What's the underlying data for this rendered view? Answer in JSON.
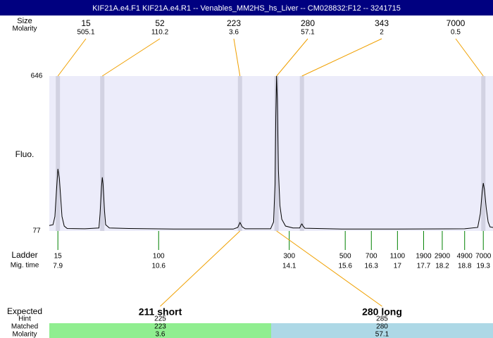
{
  "title": "KIF21A.e4.F1  KIF21A.e4.R1 -- Venables_MM2HS_hs_Liver -- CM028832:F12 -- 3241715",
  "chart_data": {
    "type": "electropherogram",
    "y_label": "Fluo.",
    "ylim": [
      77,
      646
    ],
    "yticks": [
      77,
      646
    ],
    "xlim": [
      7.67,
      19.56
    ],
    "peaks": {
      "size_label": "Size",
      "molarity_label": "Molarity",
      "sizes": [
        15,
        52,
        223,
        280,
        343,
        7000
      ],
      "molarity": [
        505.1,
        110.2,
        3.6,
        57.1,
        2,
        0.5
      ],
      "times": [
        7.9,
        9.09,
        12.78,
        13.76,
        14.44,
        19.3
      ]
    },
    "ladder": {
      "label": "Ladder",
      "time_label": "Mig. time",
      "sizes": [
        15,
        100,
        300,
        500,
        700,
        1100,
        1900,
        2900,
        4900,
        7000
      ],
      "times": [
        7.9,
        10.6,
        14.1,
        15.6,
        16.3,
        17,
        17.7,
        18.2,
        18.8,
        19.3
      ]
    },
    "trace": {
      "color": "#000000",
      "x": [
        7.67,
        7.77,
        7.82,
        7.86,
        7.9,
        7.94,
        7.98,
        8.01,
        8.07,
        8.15,
        8.62,
        9.0,
        9.03,
        9.07,
        9.09,
        9.11,
        9.15,
        9.18,
        9.28,
        9.8,
        11.0,
        12.6,
        12.72,
        12.78,
        12.84,
        12.92,
        13.6,
        13.68,
        13.72,
        13.74,
        13.76,
        13.78,
        13.81,
        13.85,
        13.9,
        14.0,
        14.2,
        14.38,
        14.42,
        14.44,
        14.47,
        14.52,
        15.5,
        17.0,
        18.8,
        19.15,
        19.22,
        19.27,
        19.3,
        19.33,
        19.38,
        19.43,
        19.48,
        19.56
      ],
      "values": [
        97,
        100,
        130,
        220,
        305,
        270,
        190,
        130,
        95,
        86,
        85,
        88,
        140,
        240,
        274,
        250,
        150,
        100,
        88,
        86,
        84,
        84,
        90,
        108,
        92,
        85,
        85,
        110,
        250,
        500,
        646,
        560,
        300,
        170,
        120,
        95,
        88,
        88,
        100,
        103,
        95,
        87,
        84,
        84,
        85,
        90,
        140,
        220,
        253,
        230,
        160,
        110,
        92,
        90
      ]
    },
    "expected": {
      "label": "Expected",
      "row_labels": [
        "Hint",
        "Matched",
        "Molarity"
      ],
      "products": [
        {
          "name": "211 short",
          "hint": 225,
          "matched": 223,
          "molarity": 3.6,
          "color": "#90ee90"
        },
        {
          "name": "280 long",
          "hint": 285,
          "matched": 280,
          "molarity": 57.1,
          "color": "#add8e6"
        }
      ]
    },
    "band_color": "#d2d2e2",
    "plot_color": "#ececfa",
    "link_color": "#f0a000",
    "ladder_color": "#008000"
  }
}
